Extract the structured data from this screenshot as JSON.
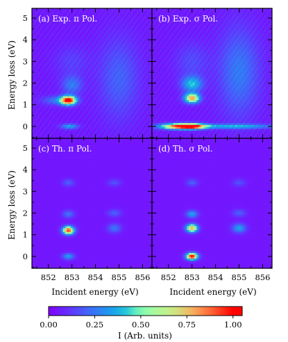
{
  "chart_data": {
    "type": "heatmap",
    "colormap": "rainbow",
    "x_label": "Incident energy (eV)",
    "y_label": "Energy loss (eV)",
    "x_range": [
      851.3,
      856.4
    ],
    "y_range": [
      -0.55,
      5.45
    ],
    "x_ticks": [
      "852",
      "853",
      "854",
      "855",
      "856"
    ],
    "y_ticks": [
      "0",
      "1",
      "2",
      "3",
      "4",
      "5"
    ],
    "panels": [
      {
        "label": "(a) Exp. π Pol.",
        "kind": "experiment",
        "background": 0.06,
        "features": [
          {
            "x": 852.85,
            "y": 1.2,
            "sx": 0.22,
            "sy": 0.14,
            "amp": 0.95
          },
          {
            "x": 852.4,
            "y": 1.2,
            "sx": 0.45,
            "sy": 0.14,
            "amp": 0.2
          },
          {
            "x": 853.0,
            "y": 1.9,
            "sx": 0.3,
            "sy": 0.3,
            "amp": 0.2
          },
          {
            "x": 855.0,
            "y": 2.2,
            "sx": 0.6,
            "sy": 1.3,
            "amp": 0.15
          },
          {
            "x": 852.9,
            "y": 0.0,
            "sx": 0.25,
            "sy": 0.08,
            "amp": 0.3
          },
          {
            "x": 853.0,
            "y": 3.0,
            "sx": 0.5,
            "sy": 0.5,
            "amp": 0.08
          }
        ]
      },
      {
        "label": "(b) Exp. σ Pol.",
        "kind": "experiment",
        "background": 0.06,
        "features": [
          {
            "x": 853.0,
            "y": 1.3,
            "sx": 0.22,
            "sy": 0.15,
            "amp": 0.75
          },
          {
            "x": 853.0,
            "y": 1.95,
            "sx": 0.3,
            "sy": 0.25,
            "amp": 0.35
          },
          {
            "x": 855.0,
            "y": 2.5,
            "sx": 0.6,
            "sy": 1.4,
            "amp": 0.2
          },
          {
            "x": 852.6,
            "y": 0.0,
            "sx": 0.6,
            "sy": 0.09,
            "amp": 1.0
          },
          {
            "x": 853.1,
            "y": 0.0,
            "sx": 0.3,
            "sy": 0.09,
            "amp": 0.3
          },
          {
            "x": 854.8,
            "y": 0.0,
            "sx": 1.3,
            "sy": 0.07,
            "amp": 0.32
          },
          {
            "x": 853.0,
            "y": 3.0,
            "sx": 0.5,
            "sy": 0.6,
            "amp": 0.1
          }
        ]
      },
      {
        "label": "(c) Th. π Pol.",
        "kind": "theory",
        "background": 0.05,
        "features": [
          {
            "x": 852.85,
            "y": 1.2,
            "sx": 0.17,
            "sy": 0.13,
            "amp": 0.9
          },
          {
            "x": 852.85,
            "y": 0.0,
            "sx": 0.17,
            "sy": 0.1,
            "amp": 0.3
          },
          {
            "x": 852.85,
            "y": 1.95,
            "sx": 0.17,
            "sy": 0.12,
            "amp": 0.2
          },
          {
            "x": 852.85,
            "y": 3.4,
            "sx": 0.17,
            "sy": 0.12,
            "amp": 0.15
          },
          {
            "x": 854.8,
            "y": 1.3,
            "sx": 0.2,
            "sy": 0.15,
            "amp": 0.2
          },
          {
            "x": 854.8,
            "y": 2.0,
            "sx": 0.2,
            "sy": 0.12,
            "amp": 0.15
          },
          {
            "x": 854.8,
            "y": 3.4,
            "sx": 0.2,
            "sy": 0.12,
            "amp": 0.12
          }
        ]
      },
      {
        "label": "(d) Th. σ Pol.",
        "kind": "theory",
        "background": 0.05,
        "features": [
          {
            "x": 853.0,
            "y": 1.3,
            "sx": 0.17,
            "sy": 0.13,
            "amp": 0.75
          },
          {
            "x": 853.0,
            "y": 0.0,
            "sx": 0.17,
            "sy": 0.11,
            "amp": 1.0
          },
          {
            "x": 853.0,
            "y": 1.95,
            "sx": 0.17,
            "sy": 0.12,
            "amp": 0.3
          },
          {
            "x": 853.0,
            "y": 3.4,
            "sx": 0.17,
            "sy": 0.12,
            "amp": 0.15
          },
          {
            "x": 855.0,
            "y": 1.3,
            "sx": 0.2,
            "sy": 0.15,
            "amp": 0.3
          },
          {
            "x": 855.0,
            "y": 2.0,
            "sx": 0.2,
            "sy": 0.12,
            "amp": 0.15
          },
          {
            "x": 855.0,
            "y": 3.4,
            "sx": 0.2,
            "sy": 0.12,
            "amp": 0.12
          }
        ]
      }
    ],
    "colorbar": {
      "label": "I (Arb. units)",
      "range": [
        0.0,
        1.05
      ],
      "ticks": [
        "0.00",
        "0.25",
        "0.50",
        "0.75",
        "1.00"
      ]
    }
  }
}
